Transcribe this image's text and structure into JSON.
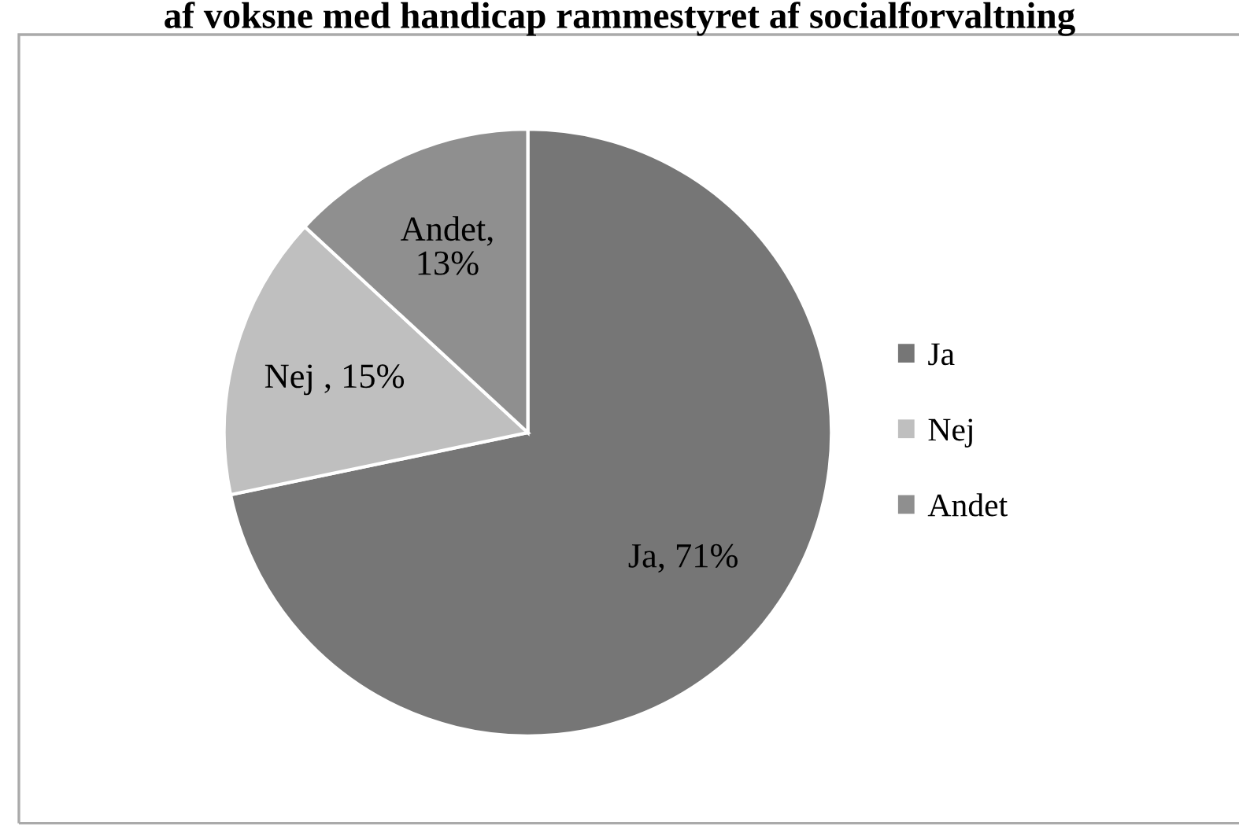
{
  "chart_data": {
    "type": "pie",
    "title": "af voksne med handicap rammestyret af socialforvaltning",
    "categories": [
      "Ja",
      "Nej",
      "Andet"
    ],
    "values": [
      71,
      15,
      13
    ],
    "colors": [
      "#767676",
      "#bfbfbf",
      "#8f8f8f"
    ],
    "value_labels": [
      "Ja, 71%",
      "Nej , 15%",
      "Andet,\n13%"
    ],
    "legend": "right"
  }
}
